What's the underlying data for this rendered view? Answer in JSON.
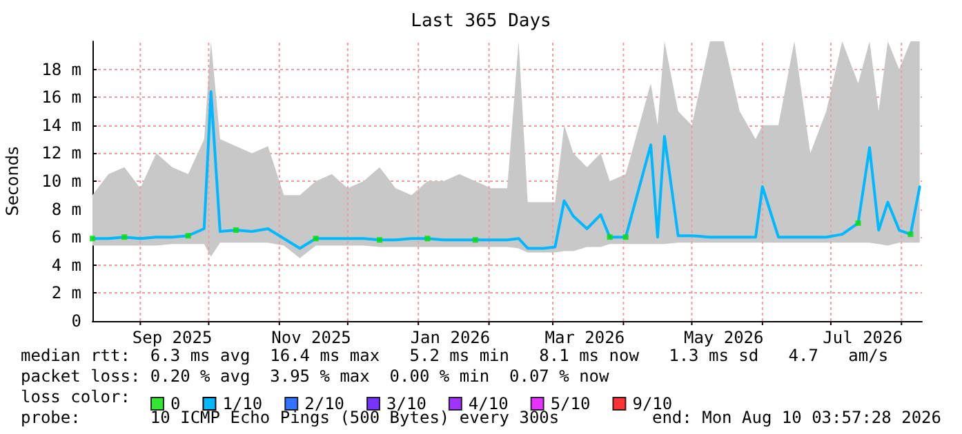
{
  "chart_data": {
    "type": "line",
    "title": "Last 365 Days",
    "ylabel": "Seconds",
    "legend_title": "loss color:",
    "legend": "bottom",
    "grid": true,
    "xlim": [
      "2025-08-11",
      "2026-08-10"
    ],
    "xticks": [
      {
        "value": "2025-09-01",
        "label": null
      },
      {
        "value": "2025-09-15",
        "label": "Sep 2025"
      },
      {
        "value": "2025-10-01",
        "label": null
      },
      {
        "value": "2025-11-01",
        "label": null
      },
      {
        "value": "2025-11-15",
        "label": "Nov 2025"
      },
      {
        "value": "2025-12-01",
        "label": null
      },
      {
        "value": "2026-01-01",
        "label": null
      },
      {
        "value": "2026-01-15",
        "label": "Jan 2026"
      },
      {
        "value": "2026-02-01",
        "label": null
      },
      {
        "value": "2026-03-01",
        "label": null
      },
      {
        "value": "2026-03-15",
        "label": "Mar 2026"
      },
      {
        "value": "2026-04-01",
        "label": null
      },
      {
        "value": "2026-05-01",
        "label": null
      },
      {
        "value": "2026-05-15",
        "label": "May 2026"
      },
      {
        "value": "2026-06-01",
        "label": null
      },
      {
        "value": "2026-07-01",
        "label": null
      },
      {
        "value": "2026-07-15",
        "label": "Jul 2026"
      },
      {
        "value": "2026-08-01",
        "label": null
      }
    ],
    "ylim": [
      0,
      20
    ],
    "yticks": [
      0,
      {
        "value": 2,
        "label": "2 m"
      },
      {
        "value": 4,
        "label": "4 m"
      },
      {
        "value": 6,
        "label": "6 m"
      },
      {
        "value": 8,
        "label": "8 m"
      },
      {
        "value": 10,
        "label": "10 m"
      },
      {
        "value": 12,
        "label": "12 m"
      },
      {
        "value": 14,
        "label": "14 m"
      },
      {
        "value": 16,
        "label": "16 m"
      },
      {
        "value": 18,
        "label": "18 m"
      }
    ],
    "x": [
      "2025-08-11",
      "2025-08-18",
      "2025-08-25",
      "2025-09-01",
      "2025-09-08",
      "2025-09-15",
      "2025-09-22",
      "2025-09-29",
      "2025-10-02",
      "2025-10-06",
      "2025-10-13",
      "2025-10-20",
      "2025-10-27",
      "2025-11-03",
      "2025-11-10",
      "2025-11-17",
      "2025-11-24",
      "2025-12-01",
      "2025-12-08",
      "2025-12-15",
      "2025-12-22",
      "2025-12-29",
      "2026-01-05",
      "2026-01-12",
      "2026-01-19",
      "2026-01-26",
      "2026-02-02",
      "2026-02-09",
      "2026-02-14",
      "2026-02-18",
      "2026-02-25",
      "2026-03-02",
      "2026-03-06",
      "2026-03-10",
      "2026-03-16",
      "2026-03-22",
      "2026-03-26",
      "2026-04-02",
      "2026-04-13",
      "2026-04-16",
      "2026-04-19",
      "2026-04-25",
      "2026-05-01",
      "2026-05-09",
      "2026-05-15",
      "2026-05-22",
      "2026-05-29",
      "2026-06-01",
      "2026-06-08",
      "2026-06-15",
      "2026-06-22",
      "2026-06-29",
      "2026-07-06",
      "2026-07-13",
      "2026-07-18",
      "2026-07-22",
      "2026-07-26",
      "2026-07-31",
      "2026-08-05",
      "2026-08-09"
    ],
    "series": [
      {
        "name": "0",
        "type": "scatter",
        "color": "#00e000",
        "marker": "square",
        "values": [
          5.9,
          null,
          6.0,
          null,
          null,
          null,
          6.1,
          null,
          null,
          null,
          6.5,
          null,
          null,
          null,
          null,
          5.9,
          null,
          null,
          null,
          5.8,
          null,
          null,
          5.9,
          null,
          null,
          5.8,
          null,
          null,
          null,
          null,
          null,
          null,
          null,
          null,
          null,
          null,
          6.0,
          6.0,
          null,
          null,
          null,
          null,
          null,
          null,
          null,
          null,
          null,
          null,
          null,
          null,
          null,
          null,
          null,
          7.0,
          null,
          null,
          null,
          null,
          6.2,
          null
        ]
      },
      {
        "name": "1/10",
        "color": "#00b8ff",
        "marker": "none",
        "line_style": "solid",
        "values": [
          5.9,
          5.9,
          6.0,
          5.9,
          6.0,
          6.0,
          6.1,
          6.6,
          16.4,
          6.4,
          6.5,
          6.4,
          6.6,
          5.9,
          5.2,
          5.9,
          5.9,
          5.9,
          5.9,
          5.8,
          5.8,
          5.9,
          5.9,
          5.8,
          5.8,
          5.8,
          5.8,
          5.8,
          5.9,
          5.2,
          5.2,
          5.3,
          8.6,
          7.5,
          6.6,
          7.6,
          6.0,
          6.0,
          12.6,
          6.0,
          13.2,
          6.1,
          6.1,
          6.0,
          6.0,
          6.0,
          6.0,
          9.6,
          6.0,
          6.0,
          6.0,
          6.0,
          6.2,
          7.0,
          12.4,
          6.5,
          8.5,
          6.5,
          6.2,
          9.6
        ],
        "lower": [
          5.4,
          5.4,
          5.4,
          5.4,
          5.4,
          5.5,
          5.5,
          5.5,
          4.6,
          5.6,
          5.6,
          5.6,
          5.6,
          5.4,
          4.5,
          5.4,
          5.4,
          5.4,
          5.4,
          5.3,
          5.3,
          5.3,
          5.3,
          5.3,
          5.3,
          5.3,
          5.3,
          5.3,
          5.2,
          4.9,
          4.9,
          4.9,
          5.0,
          5.0,
          5.3,
          5.3,
          5.5,
          5.5,
          5.5,
          5.5,
          5.5,
          5.6,
          5.6,
          5.6,
          5.6,
          5.6,
          5.6,
          5.6,
          5.6,
          5.6,
          5.6,
          5.6,
          5.6,
          5.6,
          5.6,
          5.5,
          5.4,
          5.6,
          5.6,
          5.6
        ],
        "upper": [
          9.0,
          10.5,
          11.0,
          9.5,
          12.0,
          11.0,
          10.5,
          13.0,
          20,
          13.0,
          12.5,
          12.0,
          12.5,
          9.0,
          9.0,
          10.0,
          10.5,
          9.5,
          10.0,
          11.0,
          9.5,
          9.0,
          10.0,
          10.0,
          10.5,
          10.0,
          9.5,
          9.5,
          20,
          8.5,
          8.5,
          8.5,
          14.0,
          12.0,
          11.0,
          12.0,
          10.0,
          10.5,
          17.0,
          14.0,
          20,
          15.0,
          14.0,
          20,
          20,
          15.0,
          13.0,
          14.0,
          14.0,
          20,
          12.0,
          15.0,
          20,
          17.0,
          20,
          15.0,
          20,
          18.0,
          20,
          20
        ]
      },
      {
        "name": "2/10",
        "type": "scatter",
        "color": "#0050ff",
        "marker": "square",
        "values": [
          null,
          null,
          null,
          null,
          null,
          null,
          null,
          null,
          null,
          null,
          null,
          null,
          null,
          null,
          null,
          null,
          null,
          null,
          null,
          null,
          null,
          null,
          null,
          null,
          null,
          null,
          null,
          null,
          null,
          null,
          null,
          null,
          null,
          null,
          null,
          null,
          null,
          null,
          null,
          null,
          null,
          null,
          null,
          null,
          null,
          null,
          null,
          null,
          null,
          null,
          null,
          null,
          null,
          null,
          null,
          null,
          null,
          null,
          null,
          null
        ]
      },
      {
        "name": "3/10",
        "type": "scatter",
        "color": "#5500ff",
        "marker": "square",
        "values": [
          null,
          null,
          null,
          null,
          null,
          null,
          null,
          null,
          null,
          null,
          null,
          null,
          null,
          null,
          null,
          null,
          null,
          null,
          null,
          null,
          null,
          null,
          null,
          null,
          null,
          null,
          null,
          null,
          null,
          null,
          null,
          null,
          null,
          null,
          null,
          null,
          null,
          null,
          null,
          null,
          null,
          null,
          null,
          null,
          null,
          null,
          null,
          null,
          null,
          null,
          null,
          null,
          null,
          null,
          null,
          null,
          null,
          null,
          null,
          null
        ]
      },
      {
        "name": "4/10",
        "type": "scatter",
        "color": "#8a00ff",
        "marker": "square",
        "values": [
          null,
          null,
          null,
          null,
          null,
          null,
          null,
          null,
          null,
          null,
          null,
          null,
          null,
          null,
          null,
          null,
          null,
          null,
          null,
          null,
          null,
          null,
          null,
          null,
          null,
          null,
          null,
          null,
          null,
          null,
          null,
          null,
          null,
          null,
          null,
          null,
          null,
          null,
          null,
          null,
          null,
          null,
          null,
          null,
          null,
          null,
          null,
          null,
          null,
          null,
          null,
          null,
          null,
          null,
          null,
          null,
          null,
          null,
          null,
          null
        ]
      },
      {
        "name": "5/10",
        "type": "scatter",
        "color": "#e000ff",
        "marker": "square",
        "values": [
          null,
          null,
          null,
          null,
          null,
          null,
          null,
          null,
          null,
          null,
          null,
          null,
          null,
          null,
          null,
          null,
          null,
          null,
          null,
          null,
          null,
          null,
          null,
          null,
          null,
          null,
          null,
          null,
          null,
          null,
          null,
          null,
          null,
          null,
          null,
          null,
          null,
          null,
          null,
          null,
          null,
          null,
          null,
          null,
          null,
          null,
          null,
          null,
          null,
          null,
          null,
          null,
          null,
          null,
          null,
          null,
          null,
          null,
          null,
          null
        ]
      },
      {
        "name": "9/10",
        "type": "scatter",
        "color": "#ff0000",
        "marker": "square",
        "values": [
          null,
          null,
          null,
          null,
          null,
          null,
          null,
          null,
          null,
          null,
          null,
          null,
          null,
          null,
          null,
          null,
          null,
          null,
          null,
          null,
          null,
          null,
          null,
          null,
          null,
          null,
          null,
          null,
          null,
          null,
          null,
          null,
          null,
          null,
          null,
          null,
          null,
          null,
          null,
          null,
          null,
          null,
          null,
          null,
          null,
          null,
          null,
          null,
          null,
          null,
          null,
          null,
          null,
          null,
          null,
          null,
          null,
          null,
          null,
          null
        ]
      }
    ],
    "annotations": [
      "median rtt:  6.3 ms avg  16.4 ms max   5.2 ms min   8.1 ms now   1.3 ms sd   4.7   am/s",
      "packet loss: 0.20 % avg  3.95 % max  0.00 % min  0.07 % now",
      "probe:       10 ICMP Echo Pings (500 Bytes) every 300s",
      "end: Mon Aug 10 03:57:28 2026"
    ]
  }
}
